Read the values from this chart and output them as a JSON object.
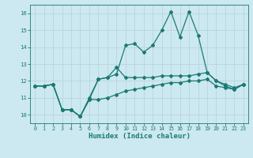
{
  "title": "",
  "xlabel": "Humidex (Indice chaleur)",
  "background_color": "#cce8f0",
  "grid_color": "#b8d4dc",
  "line_color": "#1a7a72",
  "xlim": [
    -0.5,
    23.5
  ],
  "ylim": [
    9.5,
    16.5
  ],
  "yticks": [
    10,
    11,
    12,
    13,
    14,
    15,
    16
  ],
  "xticks": [
    0,
    1,
    2,
    3,
    4,
    5,
    6,
    7,
    8,
    9,
    10,
    11,
    12,
    13,
    14,
    15,
    16,
    17,
    18,
    19,
    20,
    21,
    22,
    23
  ],
  "series": [
    [
      11.7,
      11.7,
      11.8,
      10.3,
      10.3,
      9.9,
      10.9,
      12.1,
      12.2,
      12.4,
      14.1,
      14.2,
      13.7,
      14.1,
      15.0,
      16.1,
      14.6,
      16.1,
      14.7,
      12.5,
      12.0,
      11.7,
      11.5,
      11.8
    ],
    [
      11.7,
      11.7,
      11.8,
      10.3,
      10.3,
      9.9,
      11.0,
      12.1,
      12.2,
      12.8,
      12.2,
      12.2,
      12.2,
      12.2,
      12.3,
      12.3,
      12.3,
      12.3,
      12.4,
      12.5,
      12.0,
      11.8,
      11.6,
      11.8
    ],
    [
      11.7,
      11.7,
      11.8,
      10.3,
      10.3,
      9.9,
      10.9,
      10.9,
      11.0,
      11.2,
      11.4,
      11.5,
      11.6,
      11.7,
      11.8,
      11.9,
      11.9,
      12.0,
      12.0,
      12.1,
      11.7,
      11.6,
      11.5,
      11.8
    ]
  ],
  "marker": "D",
  "markersize": 2.0,
  "linewidth": 0.9
}
